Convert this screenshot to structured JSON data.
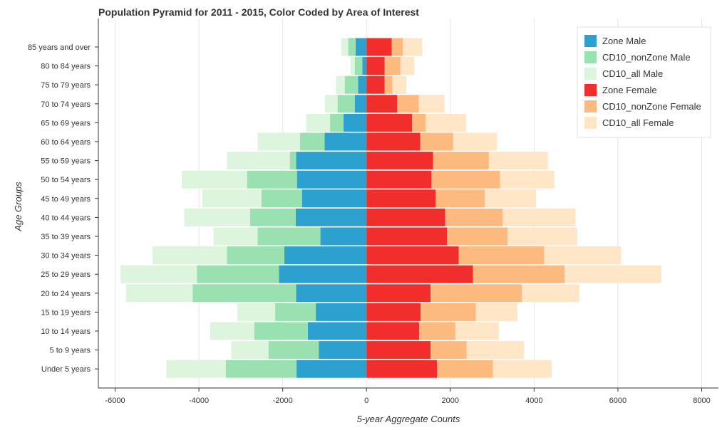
{
  "chart_data": {
    "type": "bar",
    "orientation": "horizontal",
    "stacked": true,
    "title": "Population Pyramid for 2011 - 2015, Color Coded by Area of Interest",
    "xlabel": "5-year Aggregate Counts",
    "ylabel": "Age Groups",
    "xlim": [
      -6400,
      8400
    ],
    "xticks": [
      -6000,
      -4000,
      -2000,
      0,
      2000,
      4000,
      6000,
      8000
    ],
    "xtick_labels": [
      "-6000",
      "-4000",
      "-2000",
      "0",
      "2000",
      "4000",
      "6000",
      "8000"
    ],
    "grid": true,
    "legend_position": "top-right",
    "categories": [
      "85 years and over",
      "80 to 84 years",
      "75 to 79 years",
      "70 to 74 years",
      "65 to 69 years",
      "60 to 64 years",
      "55 to 59 years",
      "50 to 54 years",
      "45 to 49 years",
      "40 to 44 years",
      "35 to 39 years",
      "30 to 34 years",
      "25 to 29 years",
      "20 to 24 years",
      "15 to 19 years",
      "10 to 14 years",
      "5 to 9 years",
      "Under 5 years"
    ],
    "series": [
      {
        "name": "Zone Male",
        "side": "left",
        "color": "#2ca1d0",
        "values": [
          -260,
          -100,
          -200,
          -280,
          -550,
          -1000,
          -1680,
          -1660,
          -1540,
          -1690,
          -1100,
          -1960,
          -2090,
          -1680,
          -1210,
          -1400,
          -1140,
          -1670
        ]
      },
      {
        "name": "CD10_nonZone Male",
        "side": "left",
        "color": "#99e1b0",
        "values": [
          -180,
          -180,
          -320,
          -410,
          -320,
          -590,
          -150,
          -1190,
          -970,
          -1090,
          -1500,
          -1370,
          -1960,
          -2470,
          -970,
          -1280,
          -1200,
          -1690
        ]
      },
      {
        "name": "CD10_all Male",
        "side": "left",
        "color": "#ddf5dd",
        "values": [
          -160,
          -100,
          -210,
          -300,
          -570,
          -1010,
          -1500,
          -1560,
          -1410,
          -1570,
          -1050,
          -1780,
          -1820,
          -1590,
          -900,
          -1050,
          -890,
          -1420
        ]
      },
      {
        "name": "Zone Female",
        "side": "right",
        "color": "#f12e2b",
        "values": [
          600,
          430,
          430,
          730,
          1090,
          1280,
          1590,
          1550,
          1650,
          1880,
          1920,
          2200,
          2540,
          1530,
          1290,
          1260,
          1530,
          1680
        ]
      },
      {
        "name": "CD10_nonZone Female",
        "side": "right",
        "color": "#fdba7f",
        "values": [
          270,
          380,
          190,
          520,
          320,
          790,
          1330,
          1640,
          1170,
          1370,
          1450,
          2040,
          2190,
          2180,
          1320,
          860,
          860,
          1340
        ]
      },
      {
        "name": "CD10_all Female",
        "side": "right",
        "color": "#fee6c6",
        "values": [
          460,
          330,
          330,
          610,
          970,
          1040,
          1410,
          1290,
          1230,
          1740,
          1660,
          1840,
          2310,
          1370,
          990,
          1040,
          1370,
          1400
        ]
      }
    ]
  }
}
